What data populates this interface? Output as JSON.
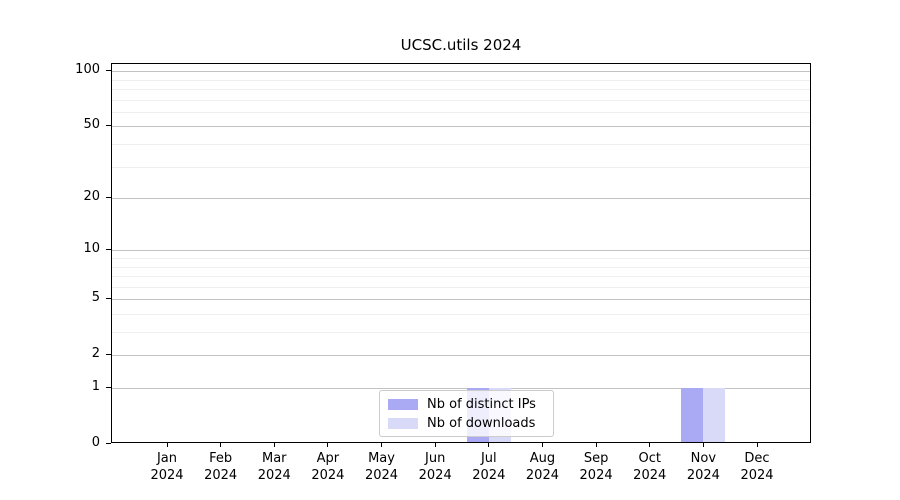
{
  "chart_data": {
    "type": "bar",
    "title": "UCSC.utils 2024",
    "categories": [
      "Jan",
      "Feb",
      "Mar",
      "Apr",
      "May",
      "Jun",
      "Jul",
      "Aug",
      "Sep",
      "Oct",
      "Nov",
      "Dec"
    ],
    "year_label": "2024",
    "series": [
      {
        "name": "Nb of distinct IPs",
        "color": "#a9a9f4",
        "values": [
          0,
          0,
          0,
          0,
          0,
          0,
          1,
          0,
          0,
          0,
          1,
          0
        ]
      },
      {
        "name": "Nb of downloads",
        "color": "#d9d9f8",
        "values": [
          0,
          0,
          0,
          0,
          0,
          0,
          1,
          0,
          0,
          0,
          1,
          0
        ]
      }
    ],
    "y_axis": {
      "scale": "log1p",
      "ticks": [
        100,
        50,
        20,
        10,
        5,
        2,
        1,
        0
      ],
      "minor_gridlines": [
        90,
        80,
        70,
        60,
        40,
        30,
        9,
        8,
        7,
        6,
        4,
        3
      ],
      "ylim": [
        0,
        110
      ]
    },
    "xlabel": "",
    "ylabel": "",
    "grid": true,
    "legend_position": "lower center",
    "colors": {
      "major_grid": "#c2c2c2",
      "minor_grid": "#efefef",
      "spine": "#000000",
      "background": "#ffffff"
    }
  }
}
